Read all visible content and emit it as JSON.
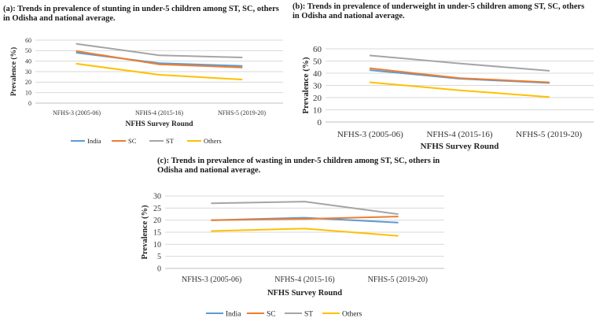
{
  "chart_data": [
    {
      "type": "line",
      "title": "(a): Trends in prevalence of stunting in under-5 children among ST, SC, others in Odisha and national average.",
      "title_lines": [
        "(a): Trends in prevalence of stunting in under-5 children among ST, SC, others",
        "in Odisha and national average."
      ],
      "categories": [
        "NFHS-3 (2005-06)",
        "NFHS-4 (2015-16)",
        "NFHS-5 (2019-20)"
      ],
      "xlabel": "NFHS Survey Round",
      "ylabel": "Prevalence (%)",
      "ylim": [
        0,
        60
      ],
      "yticks": [
        0,
        10,
        20,
        30,
        40,
        50,
        60
      ],
      "grid": true,
      "legend": "bottom",
      "series": [
        {
          "name": "India",
          "color": "#5B9BD5",
          "values": [
            48,
            38,
            35.5
          ]
        },
        {
          "name": "SC",
          "color": "#ED7D31",
          "values": [
            49.5,
            37,
            34
          ]
        },
        {
          "name": "ST",
          "color": "#A5A5A5",
          "values": [
            56.5,
            45.5,
            43.5
          ]
        },
        {
          "name": "Others",
          "color": "#FFC000",
          "values": [
            37.5,
            27,
            22.5
          ]
        }
      ]
    },
    {
      "type": "line",
      "title": "(b): Trends in prevalence of underweight in under-5 children among ST, SC, others in Odisha and national average.",
      "title_lines": [
        "(b): Trends in prevalence of underweight in under-5 children among ST, SC, others",
        "in Odisha and national average."
      ],
      "categories": [
        "NFHS-3 (2005-06)",
        "NFHS-4 (2015-16)",
        "NFHS-5 (2019-20)"
      ],
      "xlabel": "NFHS Survey Round",
      "ylabel": "Prevalence (%)",
      "ylim": [
        0,
        60
      ],
      "yticks": [
        0,
        10,
        20,
        30,
        40,
        50,
        60
      ],
      "grid": true,
      "legend": "none",
      "series": [
        {
          "name": "India",
          "color": "#5B9BD5",
          "values": [
            42.5,
            35.5,
            32
          ]
        },
        {
          "name": "SC",
          "color": "#ED7D31",
          "values": [
            44,
            36,
            32.5
          ]
        },
        {
          "name": "ST",
          "color": "#A5A5A5",
          "values": [
            54.5,
            48,
            42
          ]
        },
        {
          "name": "Others",
          "color": "#FFC000",
          "values": [
            32.5,
            26,
            20.5
          ]
        }
      ]
    },
    {
      "type": "line",
      "title": "(c): Trends in prevalence of wasting in under-5 children among ST, SC, others in Odisha and national average.",
      "title_lines": [
        "(c): Trends in prevalence of wasting in under-5 children among ST, SC, others in",
        "Odisha and national average."
      ],
      "categories": [
        "NFHS-3 (2005-06)",
        "NFHS-4 (2015-16)",
        "NFHS-5 (2019-20)"
      ],
      "xlabel": "NFHS Survey Round",
      "ylabel": "Prevalence (%)",
      "ylim": [
        0,
        30
      ],
      "yticks": [
        0,
        5,
        10,
        15,
        20,
        25,
        30
      ],
      "grid": true,
      "legend": "bottom",
      "series": [
        {
          "name": "India",
          "color": "#5B9BD5",
          "values": [
            20,
            21,
            19
          ]
        },
        {
          "name": "SC",
          "color": "#ED7D31",
          "values": [
            20,
            20.5,
            21.5
          ]
        },
        {
          "name": "ST",
          "color": "#A5A5A5",
          "values": [
            27,
            27.7,
            22.5
          ]
        },
        {
          "name": "Others",
          "color": "#FFC000",
          "values": [
            15.5,
            16.5,
            13.5
          ]
        }
      ]
    }
  ]
}
